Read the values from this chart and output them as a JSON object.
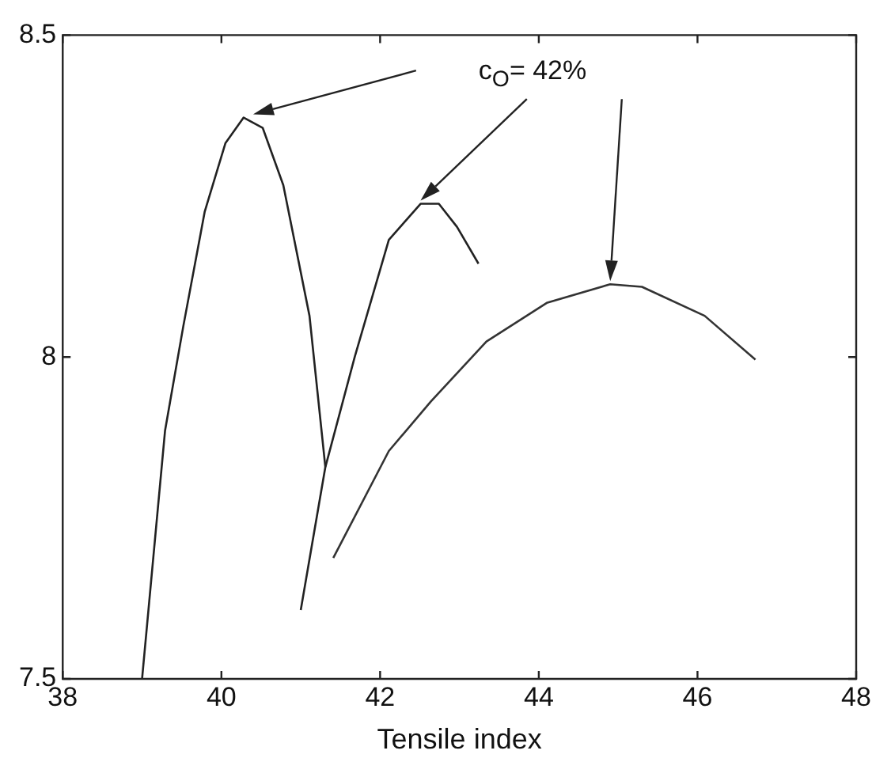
{
  "chart_data": {
    "type": "line",
    "xlabel": "Tensile index",
    "xlim": [
      38,
      48
    ],
    "xticks": [
      38,
      40,
      42,
      44,
      46,
      48
    ],
    "ylim": [
      7.5,
      8.5
    ],
    "yticks": [
      7.5,
      8,
      8.5
    ],
    "grid": false,
    "legend": false,
    "marker": "none",
    "line_style": "solid",
    "annotations": [
      "c$_{O}$= 42%"
    ],
    "series": [
      {
        "color": "#222222",
        "x": [
          39.0,
          39.29,
          39.52,
          39.79,
          40.05,
          40.28,
          40.52,
          40.78,
          41.11,
          41.31
        ],
        "values": [
          7.5,
          7.886,
          8.048,
          8.226,
          8.332,
          8.372,
          8.356,
          8.267,
          8.064,
          7.829
        ]
      },
      {
        "color": "#222222",
        "x": [
          41.0,
          41.31,
          41.68,
          42.11,
          42.51,
          42.74,
          42.97,
          43.24
        ],
        "values": [
          7.607,
          7.829,
          8.0,
          8.182,
          8.238,
          8.238,
          8.202,
          8.145
        ]
      },
      {
        "color": "#333333",
        "x": [
          41.41,
          42.11,
          42.64,
          43.34,
          44.1,
          44.9,
          45.3,
          46.09,
          46.73
        ],
        "values": [
          7.688,
          7.854,
          7.931,
          8.024,
          8.084,
          8.113,
          8.109,
          8.064,
          7.996
        ]
      }
    ]
  }
}
